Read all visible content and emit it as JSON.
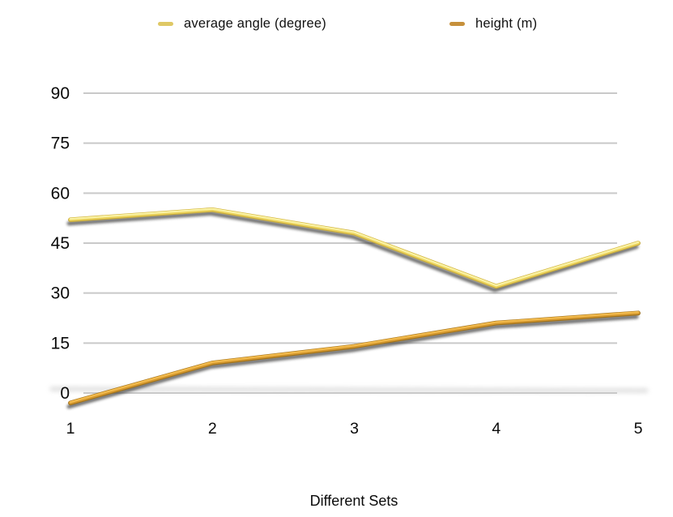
{
  "background": "#ffffff",
  "chart_data": {
    "type": "line",
    "x": [
      "1",
      "2",
      "3",
      "4",
      "5"
    ],
    "series": [
      {
        "name": "average angle (degree)",
        "values": [
          52,
          55,
          48,
          32,
          45
        ],
        "legend_swatch": "#dfc865",
        "stroke_dark": "#c5a83b",
        "stroke_base": "#edd55f",
        "stroke_highlight": "#faf3a8"
      },
      {
        "name": "height (m)",
        "values": [
          -3,
          9,
          14,
          21,
          24
        ],
        "legend_swatch": "#c6903b",
        "stroke_dark": "#9c701d",
        "stroke_base": "#d6992e",
        "stroke_highlight": "#f3bc4f"
      }
    ],
    "title": "",
    "xlabel": "Different Sets",
    "ylabel": "",
    "yticks": [
      0,
      15,
      30,
      45,
      60,
      75,
      90
    ],
    "ylim": [
      -5,
      90
    ],
    "grid": "horizontal-only",
    "legend_position": "top"
  }
}
